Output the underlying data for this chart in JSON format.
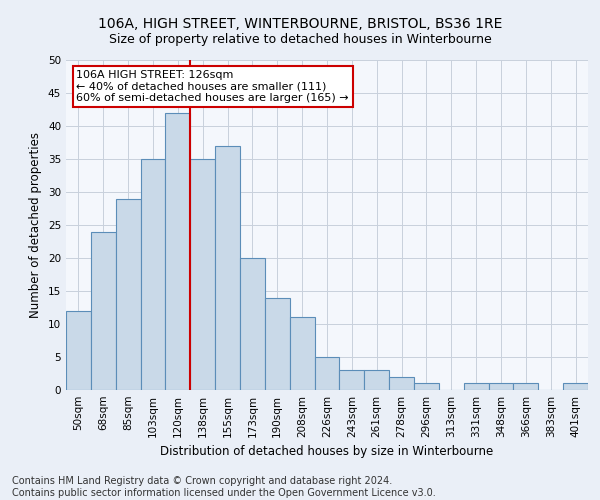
{
  "title_line1": "106A, HIGH STREET, WINTERBOURNE, BRISTOL, BS36 1RE",
  "title_line2": "Size of property relative to detached houses in Winterbourne",
  "xlabel": "Distribution of detached houses by size in Winterbourne",
  "ylabel": "Number of detached properties",
  "footer_line1": "Contains HM Land Registry data © Crown copyright and database right 2024.",
  "footer_line2": "Contains public sector information licensed under the Open Government Licence v3.0.",
  "categories": [
    "50sqm",
    "68sqm",
    "85sqm",
    "103sqm",
    "120sqm",
    "138sqm",
    "155sqm",
    "173sqm",
    "190sqm",
    "208sqm",
    "226sqm",
    "243sqm",
    "261sqm",
    "278sqm",
    "296sqm",
    "313sqm",
    "331sqm",
    "348sqm",
    "366sqm",
    "383sqm",
    "401sqm"
  ],
  "values": [
    12,
    24,
    29,
    35,
    42,
    35,
    37,
    20,
    14,
    11,
    5,
    3,
    3,
    2,
    1,
    0,
    1,
    1,
    1,
    0,
    1
  ],
  "bar_color": "#c9d9e8",
  "bar_edge_color": "#5b8db8",
  "vline_x": 4.5,
  "vline_color": "#cc0000",
  "annotation_line1": "106A HIGH STREET: 126sqm",
  "annotation_line2": "← 40% of detached houses are smaller (111)",
  "annotation_line3": "60% of semi-detached houses are larger (165) →",
  "annotation_box_color": "#ffffff",
  "annotation_box_edge": "#cc0000",
  "ylim": [
    0,
    50
  ],
  "yticks": [
    0,
    5,
    10,
    15,
    20,
    25,
    30,
    35,
    40,
    45,
    50
  ],
  "bg_color": "#eaeff7",
  "plot_bg_color": "#f4f7fc",
  "grid_color": "#c8d0dc",
  "title_fontsize": 10,
  "subtitle_fontsize": 9,
  "axis_label_fontsize": 8.5,
  "tick_fontsize": 7.5,
  "annotation_fontsize": 8,
  "footer_fontsize": 7
}
